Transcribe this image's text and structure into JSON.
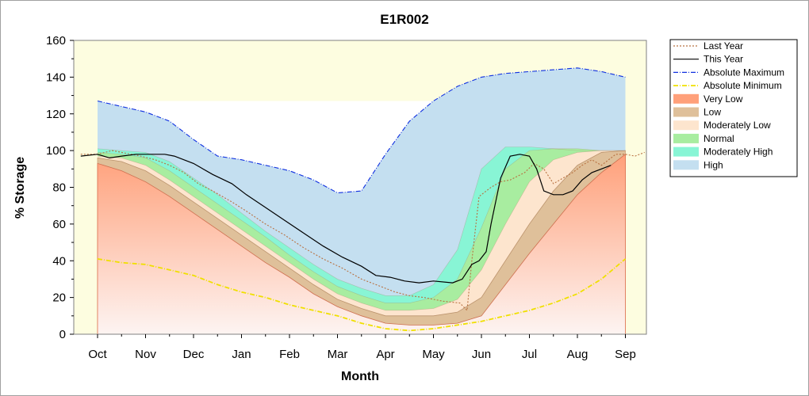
{
  "chart_data": {
    "type": "area",
    "title": "E1R002",
    "xlabel": "Month",
    "ylabel": "% Storage",
    "ylim": [
      0,
      160
    ],
    "yticks": [
      0,
      20,
      40,
      60,
      80,
      100,
      120,
      140,
      160
    ],
    "categories": [
      "Oct",
      "Nov",
      "Dec",
      "Jan",
      "Feb",
      "Mar",
      "Apr",
      "May",
      "Jun",
      "Jul",
      "Aug",
      "Sep"
    ],
    "legend_position": "right",
    "band_x": [
      0,
      0.5,
      1,
      1.5,
      2,
      2.5,
      3,
      3.5,
      4,
      4.5,
      5,
      5.5,
      6,
      6.5,
      7,
      7.5,
      8,
      8.5,
      9,
      9.5,
      10,
      10.5,
      11
    ],
    "bands": [
      {
        "name": "Very Low",
        "color": "#ffa07a",
        "upper": [
          93,
          89,
          83,
          75,
          66,
          57,
          48,
          39,
          31,
          22,
          15,
          10,
          6,
          5,
          5,
          6,
          10,
          27,
          44,
          60,
          76,
          88,
          98
        ]
      },
      {
        "name": "Low",
        "color": "#dfc09a",
        "upper": [
          96,
          94,
          89,
          81,
          72,
          63,
          54,
          45,
          36,
          27,
          19,
          14,
          10,
          10,
          10,
          12,
          20,
          40,
          60,
          78,
          92,
          99,
          100
        ]
      },
      {
        "name": "Moderately Low",
        "color": "#fde5ce",
        "upper": [
          97,
          96,
          92,
          84,
          75,
          66,
          57,
          48,
          39,
          30,
          22,
          17,
          13,
          13,
          14,
          19,
          35,
          60,
          83,
          95,
          99,
          100,
          100
        ]
      },
      {
        "name": "Normal",
        "color": "#a8eda0",
        "upper": [
          99,
          98,
          96,
          89,
          80,
          71,
          62,
          53,
          43,
          34,
          26,
          21,
          17,
          17,
          20,
          30,
          58,
          90,
          100,
          101,
          101,
          100,
          100
        ]
      },
      {
        "name": "Moderately High",
        "color": "#88f5d5",
        "upper": [
          101,
          100,
          99,
          94,
          85,
          76,
          66,
          56,
          47,
          38,
          30,
          25,
          21,
          21,
          27,
          46,
          90,
          102,
          102,
          101,
          100,
          100,
          100
        ]
      },
      {
        "name": "High",
        "color": "#c4dff0",
        "upper": [
          127,
          124,
          121,
          116,
          106,
          97,
          95,
          92,
          89,
          84,
          77,
          78,
          98,
          116,
          127,
          135,
          140,
          142,
          143,
          144,
          145,
          143,
          140
        ]
      }
    ],
    "series": [
      {
        "name": "Last Year",
        "color": "#b87040",
        "style": "dotted",
        "x": [
          -0.35,
          0,
          0.3,
          0.5,
          0.9,
          1.2,
          1.5,
          1.8,
          2.1,
          2.4,
          2.8,
          3.1,
          3.5,
          3.9,
          4.3,
          4.7,
          5.1,
          5.5,
          5.9,
          6.2,
          6.5,
          6.8,
          7.2,
          7.55,
          7.7,
          7.8,
          7.95,
          8.2,
          8.4,
          8.6,
          8.9,
          9.1,
          9.3,
          9.5,
          9.7,
          9.9,
          10.1,
          10.3,
          10.5,
          10.8,
          11.0,
          11.2,
          11.4
        ],
        "y": [
          98,
          98,
          100,
          99,
          97,
          95,
          92,
          88,
          82,
          78,
          72,
          67,
          60,
          54,
          47,
          41,
          36,
          30,
          26,
          23,
          21,
          20,
          18,
          17,
          13,
          40,
          75,
          80,
          83,
          84,
          88,
          93,
          90,
          82,
          85,
          88,
          92,
          95,
          92,
          98,
          98,
          97,
          99
        ]
      },
      {
        "name": "This Year",
        "color": "#000000",
        "style": "solid",
        "x": [
          -0.35,
          0,
          0.25,
          0.5,
          0.8,
          1.1,
          1.4,
          1.6,
          2.0,
          2.4,
          2.8,
          3.1,
          3.5,
          3.9,
          4.3,
          4.7,
          5.1,
          5.5,
          5.8,
          6.1,
          6.4,
          6.7,
          7.0,
          7.4,
          7.6,
          7.8,
          7.95,
          8.1,
          8.2,
          8.4,
          8.6,
          8.8,
          9.0,
          9.15,
          9.3,
          9.5,
          9.7,
          9.9,
          10.1,
          10.3,
          10.5,
          10.7
        ],
        "y": [
          97,
          98,
          96,
          97,
          98,
          98,
          98,
          97,
          93,
          87,
          82,
          76,
          69,
          62,
          55,
          48,
          42,
          37,
          32,
          31,
          29,
          28,
          29,
          28,
          30,
          38,
          40,
          45,
          60,
          85,
          97,
          98,
          97,
          90,
          78,
          76,
          76,
          78,
          84,
          88,
          90,
          92
        ]
      },
      {
        "name": "Absolute Maximum",
        "color": "#1030e0",
        "style": "dashdot",
        "x": [
          0,
          0.5,
          1,
          1.5,
          2,
          2.5,
          3,
          3.5,
          4,
          4.5,
          5,
          5.5,
          6,
          6.5,
          7,
          7.5,
          8,
          8.5,
          9,
          9.5,
          10,
          10.5,
          11
        ],
        "y": [
          127,
          124,
          121,
          116,
          106,
          97,
          95,
          92,
          89,
          84,
          77,
          78,
          98,
          116,
          127,
          135,
          140,
          142,
          143,
          144,
          145,
          143,
          140
        ]
      },
      {
        "name": "Absolute Minimum",
        "color": "#f0e000",
        "style": "dashdot",
        "x": [
          0,
          0.5,
          1,
          1.5,
          2,
          2.5,
          3,
          3.5,
          4,
          4.5,
          5,
          5.5,
          6,
          6.5,
          7,
          7.5,
          8,
          8.5,
          9,
          9.5,
          10,
          10.5,
          11
        ],
        "y": [
          41,
          39,
          38,
          35,
          32,
          27,
          23,
          20,
          16,
          13,
          10,
          6,
          3,
          2,
          3,
          5,
          7,
          10,
          13,
          17,
          22,
          30,
          41
        ]
      }
    ]
  },
  "colors": {
    "season_shade": "#fdfde0",
    "plot_background": "#ffffff",
    "gradient_bottom": "#fdf4f2"
  }
}
